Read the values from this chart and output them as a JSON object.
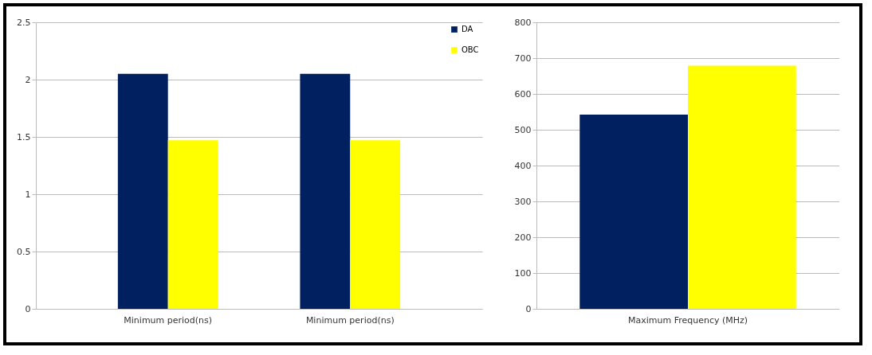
{
  "chart_data": [
    {
      "type": "bar",
      "categories": [
        "Minimum period(ns)",
        "Minimum period(ns)"
      ],
      "series": [
        {
          "name": "DA",
          "color": "#002060",
          "values": [
            2.05,
            2.05
          ]
        },
        {
          "name": "OBC",
          "color": "#ffff00",
          "values": [
            1.47,
            1.47
          ]
        }
      ],
      "ylim": [
        0,
        2.5
      ],
      "yticks": [
        0,
        0.5,
        1,
        1.5,
        2,
        2.5
      ],
      "grid": "y",
      "legend": "top right"
    },
    {
      "type": "bar",
      "categories": [
        "Maximum Frequency (MHz)"
      ],
      "series": [
        {
          "color": "#002060",
          "values": [
            542
          ]
        },
        {
          "color": "#ffff00",
          "values": [
            679
          ]
        }
      ],
      "ylim": [
        0,
        800
      ],
      "yticks": [
        0,
        100,
        200,
        300,
        400,
        500,
        600,
        700,
        800
      ],
      "grid": "y"
    }
  ]
}
